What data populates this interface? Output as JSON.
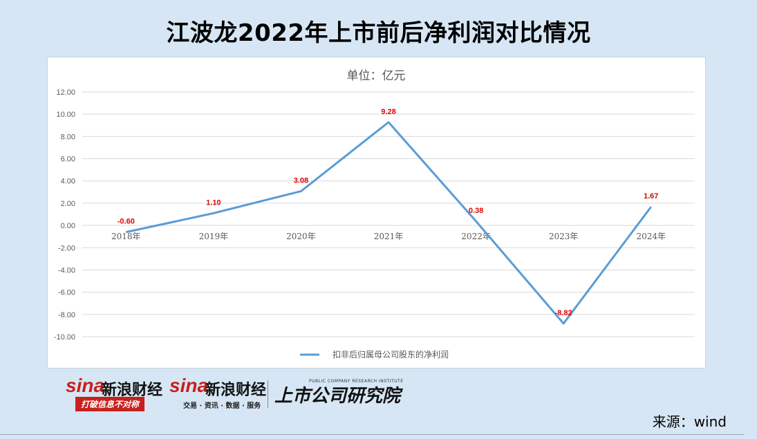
{
  "title": "江波龙2022年上市前后净利润对比情况",
  "chart_data": {
    "type": "line",
    "title": "单位：亿元",
    "categories": [
      "2018年",
      "2019年",
      "2020年",
      "2021年",
      "2022年",
      "2023年",
      "2024年"
    ],
    "series": [
      {
        "name": "扣非后归属母公司股东的净利润",
        "values": [
          -0.6,
          1.1,
          3.08,
          9.28,
          0.38,
          -8.82,
          1.67
        ],
        "labels": [
          "-0.60",
          "1.10",
          "3.08",
          "9.28",
          "0.38",
          "-8.82",
          "1.67"
        ],
        "color": "#5b9bd5"
      }
    ],
    "ylim": [
      -10,
      12
    ],
    "yticks": [
      "12.00",
      "10.00",
      "8.00",
      "6.00",
      "4.00",
      "2.00",
      "0.00",
      "-2.00",
      "-4.00",
      "-6.00",
      "-8.00",
      "-10.00"
    ],
    "grid": true,
    "legend": "bottom",
    "label_color": "#e00000"
  },
  "logos": {
    "sina1": "sina",
    "sina1_cn": "新浪财经",
    "sina1_tag": "打破信息不对称",
    "sina2": "sina",
    "sina2_cn": "新浪财经",
    "sina2_tag": "交易 · 资讯 · 数据 · 服务",
    "research": "上市公司研究院",
    "research_en": "PUBLIC COMPANY RESEARCH INSTITUTE"
  },
  "source": "来源：wind"
}
